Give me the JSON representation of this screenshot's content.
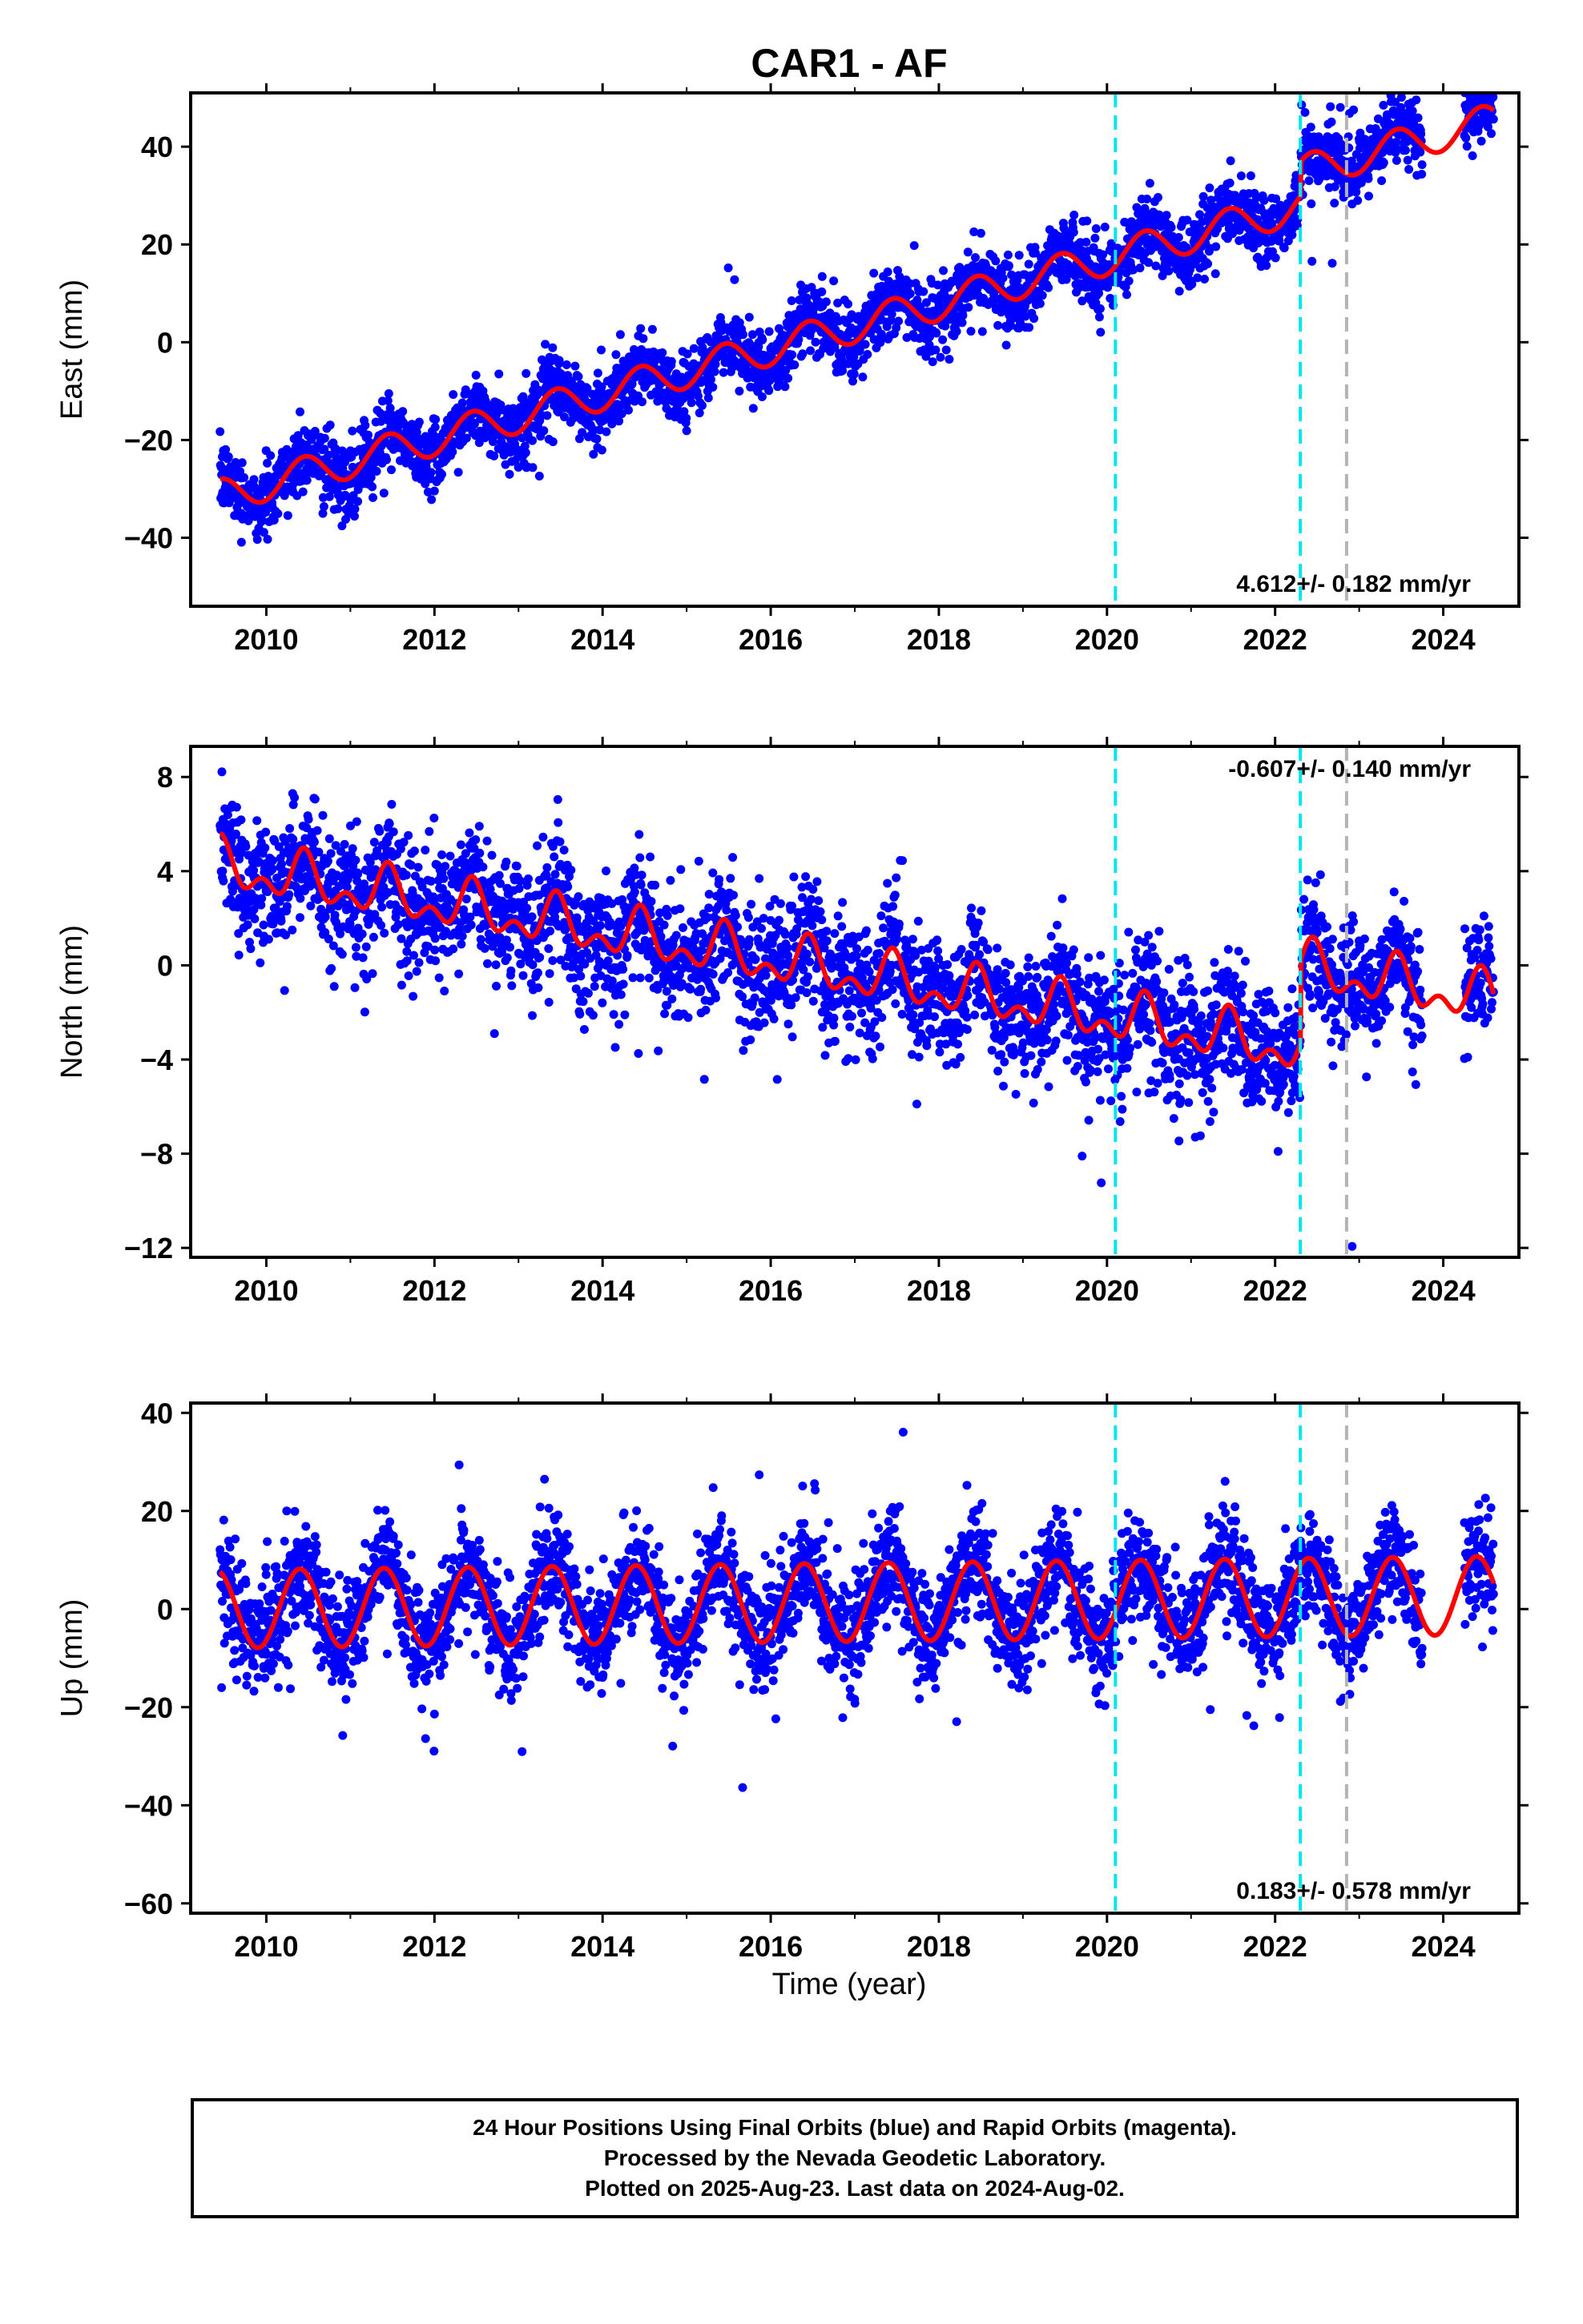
{
  "figure": {
    "title": "CAR1 - AF",
    "xlabel": "Time (year)"
  },
  "colors": {
    "data_points": "#0000ff",
    "model_fit": "#ff0000",
    "offset_line": "#00e5ee",
    "marker_line": "#b4b4b4",
    "axes": "#000000"
  },
  "chart_data": [
    {
      "type": "scatter",
      "panel": "east",
      "ylabel": "East (mm)",
      "xlim": [
        2009.1,
        2024.9
      ],
      "ylim": [
        -54,
        51
      ],
      "xticks": [
        2010,
        2012,
        2014,
        2016,
        2018,
        2020,
        2022,
        2024
      ],
      "yticks": [
        -40,
        -20,
        0,
        20,
        40
      ],
      "velocity_label": "4.612+/- 0.182 mm/yr",
      "velocity_label_position": "bottom-right",
      "series": [
        {
          "name": "",
          "kind": "daily positions (points)",
          "x_range": [
            2009.45,
            2024.6
          ],
          "spread_mm": 3.5
        },
        {
          "name": "",
          "kind": "model fit (line)",
          "trend": {
            "ref_year": 2009.45,
            "value_at_ref": -31.5,
            "rate_mm_per_yr": 4.612
          },
          "annual_amplitude": 3.5,
          "annual_phase_year": 2009.45,
          "steps": [
            {
              "year": 2022.3,
              "offset": 7
            }
          ]
        }
      ],
      "offset_lines": [
        2020.1,
        2022.3
      ],
      "marker_lines": [
        2022.85
      ]
    },
    {
      "type": "scatter",
      "panel": "north",
      "ylabel": "North (mm)",
      "xlim": [
        2009.1,
        2024.9
      ],
      "ylim": [
        -12.4,
        9.3
      ],
      "xticks": [
        2010,
        2012,
        2014,
        2016,
        2018,
        2020,
        2022,
        2024
      ],
      "yticks": [
        -12,
        -8,
        -4,
        0,
        4,
        8
      ],
      "velocity_label": "-0.607+/- 0.140 mm/yr",
      "velocity_label_position": "top-right",
      "series": [
        {
          "name": "",
          "kind": "daily positions (points)",
          "x_range": [
            2009.45,
            2024.6
          ],
          "spread_mm": 1.3
        },
        {
          "name": "",
          "kind": "model fit (line)",
          "trend": {
            "ref_year": 2009.45,
            "value_at_ref": 4.2,
            "rate_mm_per_yr": -0.607
          },
          "annual_amplitude": 0.8,
          "annual_phase_year": 2009.45,
          "semiannual_amplitude": 0.6,
          "steps": [
            {
              "year": 2022.3,
              "offset": 3.5
            }
          ]
        }
      ],
      "offset_lines": [
        2020.1,
        2022.3
      ],
      "marker_lines": [
        2022.85
      ]
    },
    {
      "type": "scatter",
      "panel": "up",
      "ylabel": "Up (mm)",
      "xlim": [
        2009.1,
        2024.9
      ],
      "ylim": [
        -62,
        42
      ],
      "xticks": [
        2010,
        2012,
        2014,
        2016,
        2018,
        2020,
        2022,
        2024
      ],
      "yticks": [
        -60,
        -40,
        -20,
        0,
        20,
        40
      ],
      "velocity_label": "0.183+/- 0.578 mm/yr",
      "velocity_label_position": "bottom-right",
      "series": [
        {
          "name": "",
          "kind": "daily positions (points)",
          "x_range": [
            2009.45,
            2024.6
          ],
          "spread_mm": 5.5
        },
        {
          "name": "",
          "kind": "model fit (line)",
          "trend": {
            "ref_year": 2009.45,
            "value_at_ref": 0,
            "rate_mm_per_yr": 0.183
          },
          "annual_amplitude": 8,
          "annual_phase_year": 2009.4,
          "steps": []
        }
      ],
      "offset_lines": [
        2020.1,
        2022.3
      ],
      "marker_lines": [
        2022.85
      ]
    }
  ],
  "footer": {
    "line1": "24 Hour Positions Using Final Orbits (blue) and Rapid Orbits (magenta).",
    "line2": "Processed by the Nevada Geodetic Laboratory.",
    "line3": "Plotted on 2025-Aug-23. Last data on 2024-Aug-02."
  }
}
